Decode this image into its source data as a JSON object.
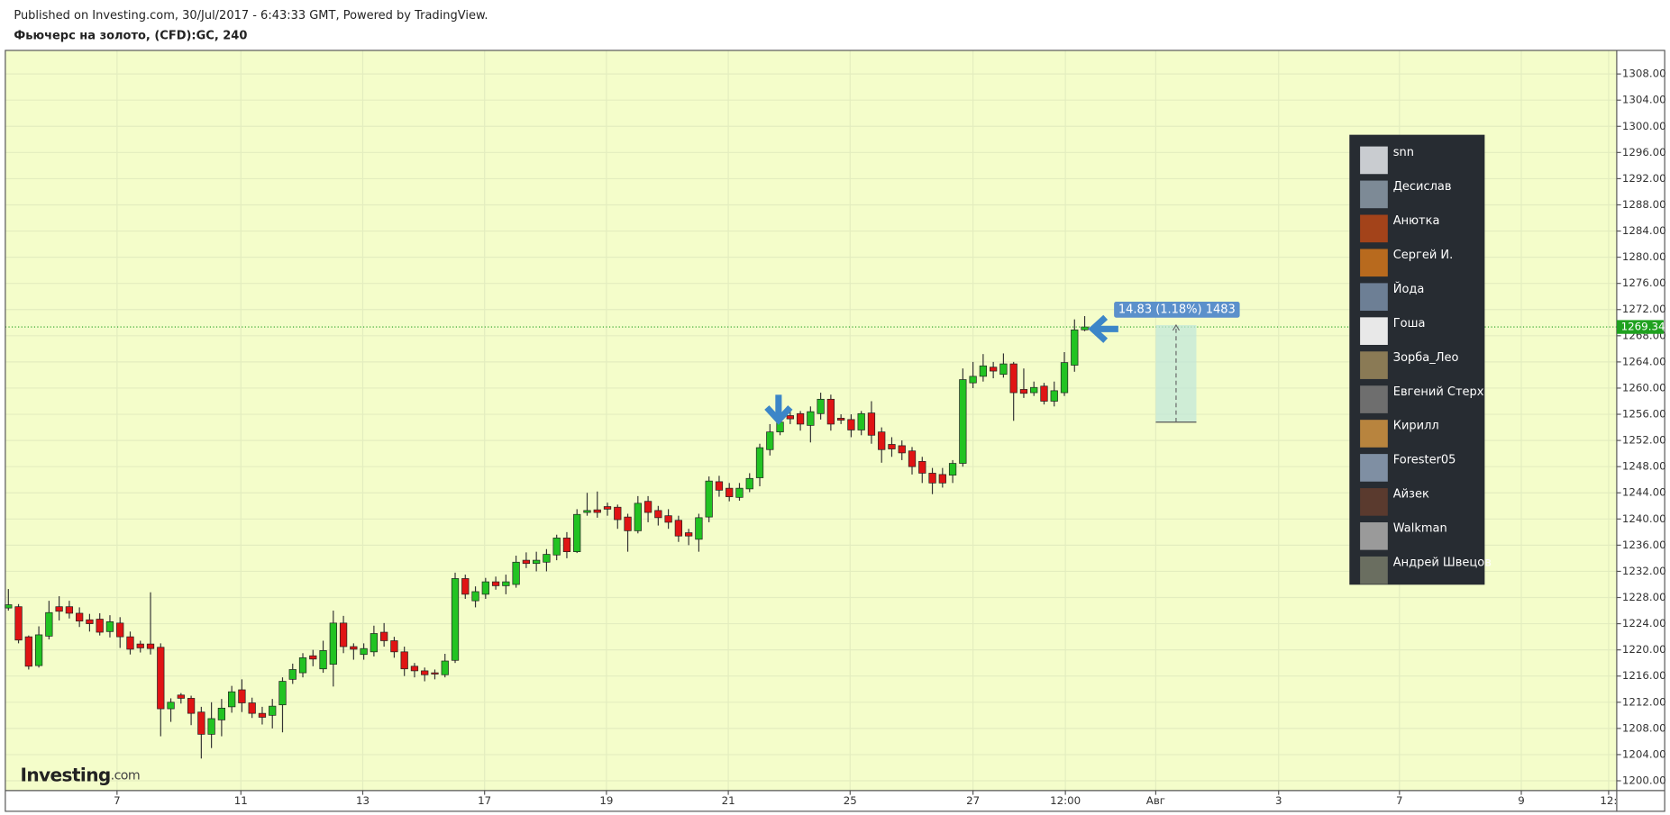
{
  "header": {
    "published": "Published on Investing.com, 30/Jul/2017 - 6:43:33 GMT, Powered by TradingView."
  },
  "chart_data": {
    "type": "candlestick",
    "title": "Фьючерс на золото, (CFD):GC, 240",
    "up_color": "#22c322",
    "down_color": "#e01414",
    "grid": true,
    "candles": [
      {
        "o": 1226.4,
        "h": 1229.3,
        "l": 1226.0,
        "c": 1226.9
      },
      {
        "o": 1226.6,
        "h": 1227.0,
        "l": 1221.0,
        "c": 1221.5
      },
      {
        "o": 1222.0,
        "h": 1222.2,
        "l": 1217.0,
        "c": 1217.5
      },
      {
        "o": 1217.6,
        "h": 1223.6,
        "l": 1217.3,
        "c": 1222.3
      },
      {
        "o": 1222.1,
        "h": 1227.5,
        "l": 1221.6,
        "c": 1225.7
      },
      {
        "o": 1226.6,
        "h": 1228.2,
        "l": 1224.5,
        "c": 1225.9
      },
      {
        "o": 1226.6,
        "h": 1227.5,
        "l": 1224.8,
        "c": 1225.6
      },
      {
        "o": 1225.6,
        "h": 1226.5,
        "l": 1223.5,
        "c": 1224.4
      },
      {
        "o": 1224.6,
        "h": 1225.5,
        "l": 1222.8,
        "c": 1224.0
      },
      {
        "o": 1224.7,
        "h": 1225.6,
        "l": 1222.2,
        "c": 1222.7
      },
      {
        "o": 1222.8,
        "h": 1225.3,
        "l": 1221.9,
        "c": 1224.3
      },
      {
        "o": 1224.1,
        "h": 1225.0,
        "l": 1220.3,
        "c": 1222.0
      },
      {
        "o": 1222.0,
        "h": 1222.8,
        "l": 1219.3,
        "c": 1220.1
      },
      {
        "o": 1220.9,
        "h": 1221.4,
        "l": 1219.6,
        "c": 1220.3
      },
      {
        "o": 1220.9,
        "h": 1228.8,
        "l": 1219.3,
        "c": 1220.2
      },
      {
        "o": 1220.4,
        "h": 1221.0,
        "l": 1206.8,
        "c": 1211.0
      },
      {
        "o": 1211.0,
        "h": 1212.6,
        "l": 1209.0,
        "c": 1212.0
      },
      {
        "o": 1213.1,
        "h": 1213.4,
        "l": 1211.8,
        "c": 1212.6
      },
      {
        "o": 1212.6,
        "h": 1213.0,
        "l": 1208.5,
        "c": 1210.3
      },
      {
        "o": 1210.5,
        "h": 1211.3,
        "l": 1203.4,
        "c": 1207.1
      },
      {
        "o": 1207.1,
        "h": 1212.0,
        "l": 1205.0,
        "c": 1209.5
      },
      {
        "o": 1209.3,
        "h": 1212.5,
        "l": 1206.8,
        "c": 1211.1
      },
      {
        "o": 1211.3,
        "h": 1214.5,
        "l": 1210.4,
        "c": 1213.6
      },
      {
        "o": 1213.9,
        "h": 1215.5,
        "l": 1210.5,
        "c": 1211.9
      },
      {
        "o": 1211.9,
        "h": 1212.7,
        "l": 1209.6,
        "c": 1210.3
      },
      {
        "o": 1210.3,
        "h": 1211.3,
        "l": 1208.6,
        "c": 1209.7
      },
      {
        "o": 1210.0,
        "h": 1212.5,
        "l": 1208.0,
        "c": 1211.4
      },
      {
        "o": 1211.6,
        "h": 1215.8,
        "l": 1207.4,
        "c": 1215.2
      },
      {
        "o": 1215.5,
        "h": 1217.9,
        "l": 1214.8,
        "c": 1217.0
      },
      {
        "o": 1216.5,
        "h": 1219.5,
        "l": 1215.8,
        "c": 1218.8
      },
      {
        "o": 1219.1,
        "h": 1220.0,
        "l": 1217.5,
        "c": 1218.6
      },
      {
        "o": 1217.1,
        "h": 1221.4,
        "l": 1216.5,
        "c": 1219.9
      },
      {
        "o": 1217.8,
        "h": 1226.0,
        "l": 1214.4,
        "c": 1224.1
      },
      {
        "o": 1224.1,
        "h": 1225.2,
        "l": 1219.5,
        "c": 1220.5
      },
      {
        "o": 1220.5,
        "h": 1221.0,
        "l": 1218.5,
        "c": 1220.1
      },
      {
        "o": 1219.3,
        "h": 1221.0,
        "l": 1218.5,
        "c": 1220.2
      },
      {
        "o": 1219.7,
        "h": 1223.7,
        "l": 1219.0,
        "c": 1222.5
      },
      {
        "o": 1222.7,
        "h": 1224.1,
        "l": 1220.5,
        "c": 1221.4
      },
      {
        "o": 1221.4,
        "h": 1222.0,
        "l": 1218.8,
        "c": 1219.7
      },
      {
        "o": 1219.7,
        "h": 1220.5,
        "l": 1216.0,
        "c": 1217.1
      },
      {
        "o": 1217.5,
        "h": 1218.0,
        "l": 1215.8,
        "c": 1216.8
      },
      {
        "o": 1216.8,
        "h": 1217.3,
        "l": 1215.2,
        "c": 1216.2
      },
      {
        "o": 1216.5,
        "h": 1217.0,
        "l": 1215.5,
        "c": 1216.3
      },
      {
        "o": 1216.2,
        "h": 1219.4,
        "l": 1215.8,
        "c": 1218.3
      },
      {
        "o": 1218.4,
        "h": 1231.8,
        "l": 1218.0,
        "c": 1230.9
      },
      {
        "o": 1230.9,
        "h": 1231.5,
        "l": 1227.8,
        "c": 1228.5
      },
      {
        "o": 1227.5,
        "h": 1229.7,
        "l": 1226.5,
        "c": 1228.9
      },
      {
        "o": 1228.5,
        "h": 1231.0,
        "l": 1227.8,
        "c": 1230.4
      },
      {
        "o": 1230.4,
        "h": 1231.2,
        "l": 1229.2,
        "c": 1229.8
      },
      {
        "o": 1229.8,
        "h": 1231.5,
        "l": 1228.5,
        "c": 1230.4
      },
      {
        "o": 1230.0,
        "h": 1234.4,
        "l": 1229.5,
        "c": 1233.4
      },
      {
        "o": 1233.7,
        "h": 1234.9,
        "l": 1232.5,
        "c": 1233.2
      },
      {
        "o": 1233.2,
        "h": 1235.0,
        "l": 1232.0,
        "c": 1233.7
      },
      {
        "o": 1233.4,
        "h": 1235.4,
        "l": 1232.0,
        "c": 1234.6
      },
      {
        "o": 1234.5,
        "h": 1237.6,
        "l": 1233.7,
        "c": 1237.1
      },
      {
        "o": 1237.1,
        "h": 1238.0,
        "l": 1234.0,
        "c": 1235.0
      },
      {
        "o": 1235.0,
        "h": 1241.5,
        "l": 1234.8,
        "c": 1240.7
      },
      {
        "o": 1241.0,
        "h": 1244.0,
        "l": 1240.5,
        "c": 1241.3
      },
      {
        "o": 1241.4,
        "h": 1244.2,
        "l": 1240.2,
        "c": 1241.0
      },
      {
        "o": 1241.9,
        "h": 1242.5,
        "l": 1240.5,
        "c": 1241.5
      },
      {
        "o": 1241.8,
        "h": 1242.2,
        "l": 1238.5,
        "c": 1239.9
      },
      {
        "o": 1240.3,
        "h": 1240.8,
        "l": 1235.0,
        "c": 1238.2
      },
      {
        "o": 1238.2,
        "h": 1243.5,
        "l": 1237.8,
        "c": 1242.4
      },
      {
        "o": 1242.7,
        "h": 1243.5,
        "l": 1239.5,
        "c": 1241.0
      },
      {
        "o": 1241.3,
        "h": 1242.0,
        "l": 1239.0,
        "c": 1240.2
      },
      {
        "o": 1240.5,
        "h": 1241.5,
        "l": 1238.5,
        "c": 1239.5
      },
      {
        "o": 1239.8,
        "h": 1240.5,
        "l": 1236.5,
        "c": 1237.4
      },
      {
        "o": 1237.9,
        "h": 1238.5,
        "l": 1236.0,
        "c": 1237.4
      },
      {
        "o": 1236.9,
        "h": 1240.8,
        "l": 1235.0,
        "c": 1240.2
      },
      {
        "o": 1240.3,
        "h": 1246.5,
        "l": 1239.5,
        "c": 1245.8
      },
      {
        "o": 1245.7,
        "h": 1246.6,
        "l": 1243.4,
        "c": 1244.4
      },
      {
        "o": 1244.7,
        "h": 1245.5,
        "l": 1242.7,
        "c": 1243.4
      },
      {
        "o": 1243.3,
        "h": 1245.5,
        "l": 1242.8,
        "c": 1244.7
      },
      {
        "o": 1244.6,
        "h": 1247.0,
        "l": 1244.1,
        "c": 1246.2
      },
      {
        "o": 1246.3,
        "h": 1251.5,
        "l": 1245.0,
        "c": 1250.9
      },
      {
        "o": 1250.6,
        "h": 1254.5,
        "l": 1249.7,
        "c": 1253.3
      },
      {
        "o": 1253.3,
        "h": 1255.6,
        "l": 1252.8,
        "c": 1254.8
      },
      {
        "o": 1255.8,
        "h": 1256.5,
        "l": 1254.5,
        "c": 1255.3
      },
      {
        "o": 1256.1,
        "h": 1256.5,
        "l": 1253.5,
        "c": 1254.5
      },
      {
        "o": 1254.3,
        "h": 1257.2,
        "l": 1251.7,
        "c": 1256.4
      },
      {
        "o": 1256.1,
        "h": 1259.3,
        "l": 1255.2,
        "c": 1258.3
      },
      {
        "o": 1258.3,
        "h": 1259.0,
        "l": 1253.5,
        "c": 1254.5
      },
      {
        "o": 1255.4,
        "h": 1256.0,
        "l": 1254.5,
        "c": 1255.1
      },
      {
        "o": 1255.2,
        "h": 1256.0,
        "l": 1252.5,
        "c": 1253.6
      },
      {
        "o": 1253.6,
        "h": 1256.5,
        "l": 1252.8,
        "c": 1256.1
      },
      {
        "o": 1256.2,
        "h": 1258.0,
        "l": 1251.5,
        "c": 1252.8
      },
      {
        "o": 1253.3,
        "h": 1254.0,
        "l": 1248.6,
        "c": 1250.6
      },
      {
        "o": 1251.4,
        "h": 1252.5,
        "l": 1249.5,
        "c": 1250.7
      },
      {
        "o": 1251.2,
        "h": 1252.0,
        "l": 1249.0,
        "c": 1250.1
      },
      {
        "o": 1250.4,
        "h": 1251.0,
        "l": 1246.8,
        "c": 1248.0
      },
      {
        "o": 1248.8,
        "h": 1249.5,
        "l": 1245.5,
        "c": 1247.0
      },
      {
        "o": 1247.0,
        "h": 1247.8,
        "l": 1243.8,
        "c": 1245.5
      },
      {
        "o": 1246.8,
        "h": 1247.8,
        "l": 1244.8,
        "c": 1245.5
      },
      {
        "o": 1246.7,
        "h": 1249.0,
        "l": 1245.5,
        "c": 1248.5
      },
      {
        "o": 1248.5,
        "h": 1263.0,
        "l": 1248.0,
        "c": 1261.3
      },
      {
        "o": 1260.8,
        "h": 1264.0,
        "l": 1260.0,
        "c": 1261.8
      },
      {
        "o": 1261.8,
        "h": 1265.2,
        "l": 1261.0,
        "c": 1263.4
      },
      {
        "o": 1263.2,
        "h": 1264.0,
        "l": 1261.5,
        "c": 1262.6
      },
      {
        "o": 1262.1,
        "h": 1265.3,
        "l": 1261.6,
        "c": 1263.7
      },
      {
        "o": 1263.7,
        "h": 1264.0,
        "l": 1255.0,
        "c": 1259.3
      },
      {
        "o": 1259.8,
        "h": 1263.0,
        "l": 1258.5,
        "c": 1259.2
      },
      {
        "o": 1259.3,
        "h": 1261.0,
        "l": 1258.8,
        "c": 1260.1
      },
      {
        "o": 1260.3,
        "h": 1260.8,
        "l": 1257.5,
        "c": 1258.0
      },
      {
        "o": 1258.0,
        "h": 1261.0,
        "l": 1257.2,
        "c": 1259.6
      },
      {
        "o": 1259.3,
        "h": 1265.5,
        "l": 1258.8,
        "c": 1263.9
      },
      {
        "o": 1263.5,
        "h": 1270.5,
        "l": 1262.5,
        "c": 1268.9
      },
      {
        "o": 1268.9,
        "h": 1271.0,
        "l": 1268.7,
        "c": 1269.34
      }
    ],
    "xlim": [
      -0.3,
      158.4
    ],
    "xticks": [
      {
        "value": 10.7,
        "label": "7"
      },
      {
        "value": 22.9,
        "label": "11"
      },
      {
        "value": 34.9,
        "label": "13"
      },
      {
        "value": 46.9,
        "label": "17"
      },
      {
        "value": 58.9,
        "label": "19"
      },
      {
        "value": 70.9,
        "label": "21"
      },
      {
        "value": 82.9,
        "label": "25"
      },
      {
        "value": 95.0,
        "label": "27"
      },
      {
        "value": 104.1,
        "label": "12:00"
      },
      {
        "value": 113.0,
        "label": "Авг"
      },
      {
        "value": 125.1,
        "label": "3"
      },
      {
        "value": 137.0,
        "label": "7"
      },
      {
        "value": 149.0,
        "label": "9"
      },
      {
        "value": 157.6,
        "label": "12:"
      }
    ],
    "ylim": [
      1198.5,
      1311.6
    ],
    "yticks": [
      {
        "value": 1200,
        "label": "1200.00"
      },
      {
        "value": 1204,
        "label": "1204.00"
      },
      {
        "value": 1208,
        "label": "1208.00"
      },
      {
        "value": 1212,
        "label": "1212.00"
      },
      {
        "value": 1216,
        "label": "1216.00"
      },
      {
        "value": 1220,
        "label": "1220.00"
      },
      {
        "value": 1224,
        "label": "1224.00"
      },
      {
        "value": 1228,
        "label": "1228.00"
      },
      {
        "value": 1232,
        "label": "1232.00"
      },
      {
        "value": 1236,
        "label": "1236.00"
      },
      {
        "value": 1240,
        "label": "1240.00"
      },
      {
        "value": 1244,
        "label": "1244.00"
      },
      {
        "value": 1248,
        "label": "1248.00"
      },
      {
        "value": 1252,
        "label": "1252.00"
      },
      {
        "value": 1256,
        "label": "1256.00"
      },
      {
        "value": 1260,
        "label": "1260.00"
      },
      {
        "value": 1264,
        "label": "1264.00"
      },
      {
        "value": 1268,
        "label": "1268.00"
      },
      {
        "value": 1272,
        "label": "1272.00"
      },
      {
        "value": 1276,
        "label": "1276.00"
      },
      {
        "value": 1280,
        "label": "1280.00"
      },
      {
        "value": 1284,
        "label": "1284.00"
      },
      {
        "value": 1288,
        "label": "1288.00"
      },
      {
        "value": 1292,
        "label": "1292.00"
      },
      {
        "value": 1296,
        "label": "1296.00"
      },
      {
        "value": 1300,
        "label": "1300.00"
      },
      {
        "value": 1304,
        "label": "1304.00"
      },
      {
        "value": 1308,
        "label": "1308.00"
      }
    ],
    "last_price": 1269.34,
    "measure": {
      "label": "14.83 (1.18%) 1483",
      "from": 1254.8,
      "to": 1269.63,
      "x": [
        113,
        117
      ]
    },
    "watermark": [
      "Investing",
      ".com"
    ]
  },
  "users_panel": {
    "names": [
      "snn",
      "Десислав",
      "Анютка",
      "Сергей И.",
      "Йода",
      "Гоша",
      "Зорба_Лео",
      "Евгений Стерх",
      "Кирилл",
      "Forester05",
      "Айзек",
      "Walkman",
      "Андрей Швецов"
    ]
  }
}
